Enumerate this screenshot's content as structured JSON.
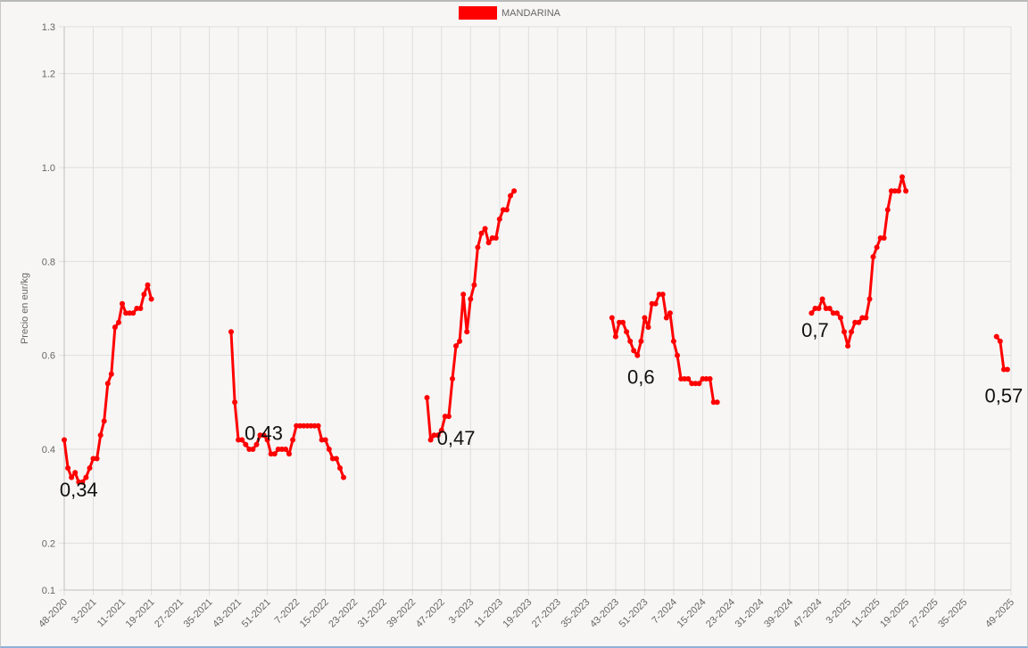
{
  "chart_data": {
    "type": "line",
    "ylabel": "Precio en eur/kg",
    "ylim": [
      0.1,
      1.3
    ],
    "yticks": [
      0.1,
      0.2,
      0.4,
      0.6,
      0.8,
      1.0,
      1.2,
      1.3
    ],
    "ytick_labels": [
      "0.1",
      "0.2",
      "0.4",
      "0.6",
      "0.8",
      "1.0",
      "1.2",
      "1.3"
    ],
    "xlim": [
      0,
      261
    ],
    "xtick_labels": [
      "48-2020",
      "3-2021",
      "11-2021",
      "19-2021",
      "27-2021",
      "35-2021",
      "43-2021",
      "51-2021",
      "7-2022",
      "15-2022",
      "23-2022",
      "31-2022",
      "39-2022",
      "47-2022",
      "3-2023",
      "11-2023",
      "19-2023",
      "27-2023",
      "35-2023",
      "43-2023",
      "51-2023",
      "7-2024",
      "15-2024",
      "23-2024",
      "31-2024",
      "39-2024",
      "47-2024",
      "3-2025",
      "11-2025",
      "19-2025",
      "27-2025",
      "35-2025",
      "49-2025"
    ],
    "xtick_positions": [
      0,
      8,
      16,
      24,
      32,
      40,
      48,
      56,
      64,
      72,
      80,
      88,
      96,
      104,
      112,
      120,
      128,
      136,
      144,
      152,
      160,
      168,
      176,
      184,
      192,
      200,
      208,
      216,
      224,
      232,
      240,
      248,
      261
    ],
    "legend": {
      "position": "top",
      "color": "#ff0000"
    },
    "grid": true,
    "series": [
      {
        "name": "MANDARINA",
        "color": "#ff0000",
        "segments": [
          {
            "x0": 0,
            "values": [
              0.42,
              0.36,
              0.34,
              0.35,
              0.33,
              0.33,
              0.34,
              0.36,
              0.38,
              0.38,
              0.43,
              0.46,
              0.54,
              0.56,
              0.66,
              0.67,
              0.71,
              0.69,
              0.69,
              0.69,
              0.7,
              0.7,
              0.73,
              0.75,
              0.72
            ]
          },
          {
            "x0": 46,
            "values": [
              0.65,
              0.5,
              0.42,
              0.42,
              0.41,
              0.4,
              0.4,
              0.41,
              0.43,
              0.43,
              0.42,
              0.39,
              0.39,
              0.4,
              0.4,
              0.4,
              0.39,
              0.42,
              0.45,
              0.45,
              0.45,
              0.45,
              0.45,
              0.45,
              0.45,
              0.42,
              0.42,
              0.4,
              0.38,
              0.38,
              0.36,
              0.34
            ]
          },
          {
            "x0": 100,
            "values": [
              0.51,
              0.42,
              0.43,
              0.43,
              0.44,
              0.47,
              0.47,
              0.55,
              0.62,
              0.63,
              0.73,
              0.65,
              0.72,
              0.75,
              0.83,
              0.86,
              0.87,
              0.84,
              0.85,
              0.85,
              0.89,
              0.91,
              0.91,
              0.94,
              0.95
            ]
          },
          {
            "x0": 151,
            "values": [
              0.68,
              0.64,
              0.67,
              0.67,
              0.65,
              0.63,
              0.61,
              0.6,
              0.63,
              0.68,
              0.66,
              0.71,
              0.71,
              0.73,
              0.73,
              0.68,
              0.69,
              0.63,
              0.6,
              0.55,
              0.55,
              0.55,
              0.54,
              0.54,
              0.54,
              0.55,
              0.55,
              0.55,
              0.5,
              0.5
            ]
          },
          {
            "x0": 206,
            "values": [
              0.69,
              0.7,
              0.7,
              0.72,
              0.7,
              0.7,
              0.69,
              0.69,
              0.68,
              0.65,
              0.62,
              0.65,
              0.67,
              0.67,
              0.68,
              0.68,
              0.72,
              0.81,
              0.83,
              0.85,
              0.85,
              0.91,
              0.95,
              0.95,
              0.95,
              0.98,
              0.95
            ]
          },
          {
            "x0": 257,
            "values": [
              0.64,
              0.63,
              0.57,
              0.57
            ]
          }
        ]
      }
    ],
    "annotations": [
      {
        "text": "0,34",
        "x": 4,
        "y": 0.33
      },
      {
        "text": "0,43",
        "x": 55,
        "y": 0.45
      },
      {
        "text": "0,47",
        "x": 108,
        "y": 0.44
      },
      {
        "text": "0,6",
        "x": 159,
        "y": 0.57
      },
      {
        "text": "0,7",
        "x": 207,
        "y": 0.67
      },
      {
        "text": "0,57",
        "x": 259,
        "y": 0.53
      }
    ]
  }
}
